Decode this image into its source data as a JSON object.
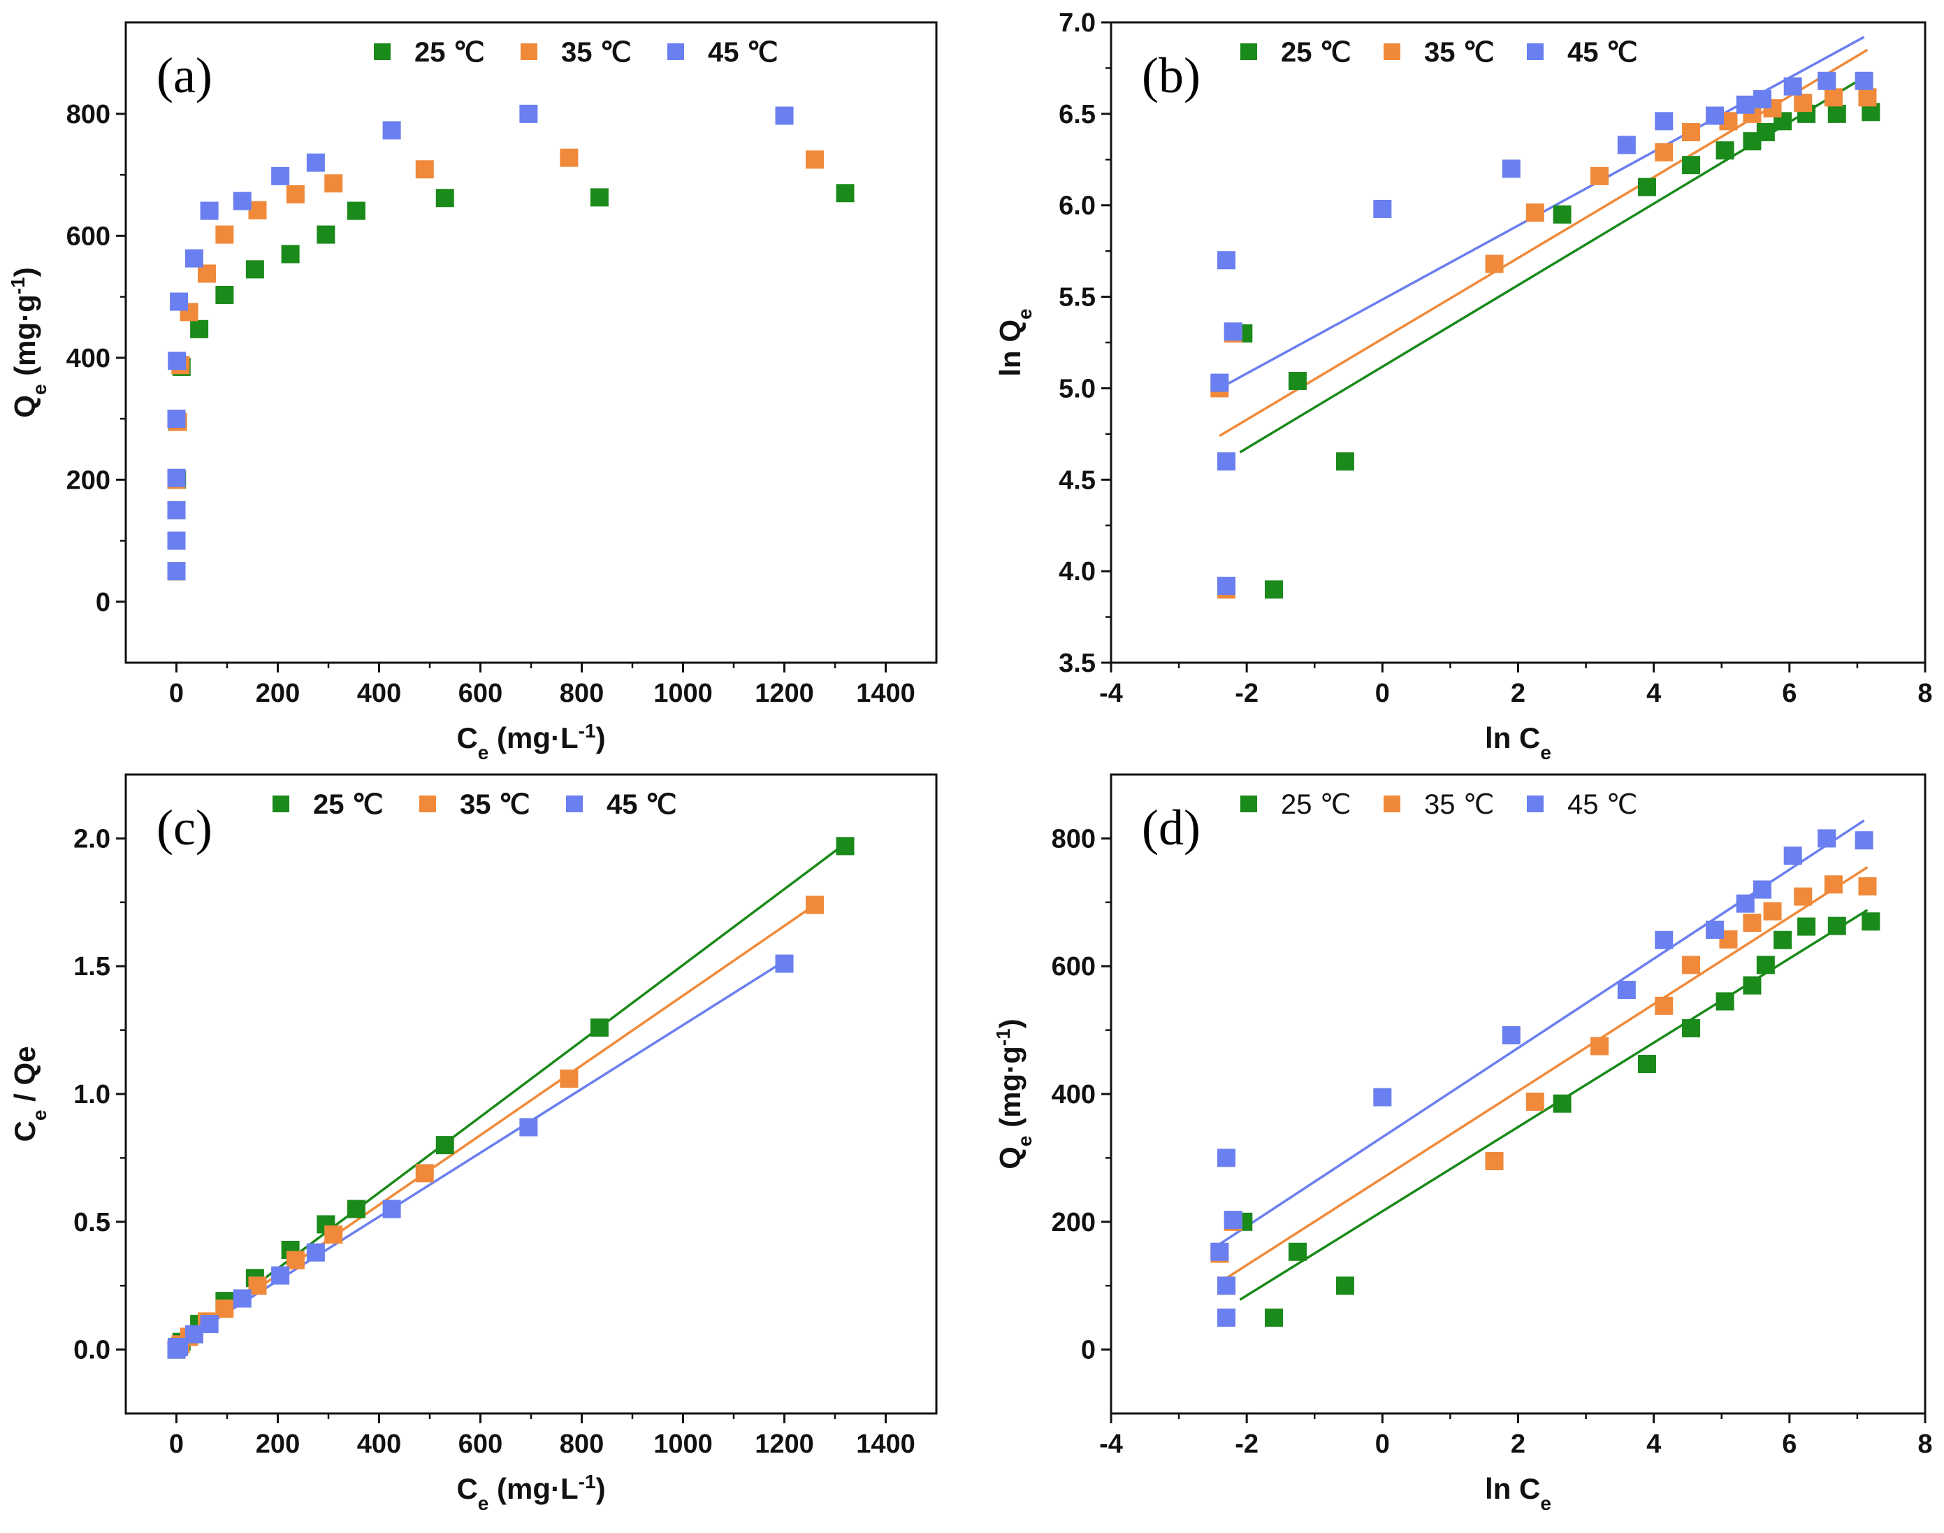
{
  "chart_data": [
    {
      "type": "scatter",
      "panel": "(a)",
      "xlabel": "Ce (mg·L-1)",
      "ylabel": "Qe (mg·g-1)",
      "xlim": [
        -100,
        1500
      ],
      "ylim": [
        -100,
        950
      ],
      "xticks": [
        0,
        200,
        400,
        600,
        800,
        1000,
        1200,
        1400
      ],
      "yticks": [
        0,
        200,
        400,
        600,
        800
      ],
      "legend": {
        "position": "top",
        "bold": true
      },
      "series": [
        {
          "name": "25 ℃",
          "color": "#1a8a1a",
          "points": [
            [
              0,
              50
            ],
            [
              0,
              100
            ],
            [
              0,
              150
            ],
            [
              1,
              200
            ],
            [
              2,
              295
            ],
            [
              10,
              385
            ],
            [
              45,
              447
            ],
            [
              95,
              503
            ],
            [
              155,
              545
            ],
            [
              225,
              570
            ],
            [
              295,
              602
            ],
            [
              355,
              641
            ],
            [
              530,
              662
            ],
            [
              835,
              663
            ],
            [
              1320,
              670
            ]
          ]
        },
        {
          "name": "35 ℃",
          "color": "#f08a3a",
          "points": [
            [
              0,
              50
            ],
            [
              0,
              100
            ],
            [
              0,
              150
            ],
            [
              0,
              200
            ],
            [
              3,
              295
            ],
            [
              8,
              388
            ],
            [
              25,
              475
            ],
            [
              60,
              538
            ],
            [
              95,
              602
            ],
            [
              160,
              642
            ],
            [
              235,
              668
            ],
            [
              310,
              686
            ],
            [
              490,
              709
            ],
            [
              775,
              728
            ],
            [
              1260,
              725
            ]
          ]
        },
        {
          "name": "45 ℃",
          "color": "#6a7ff0",
          "points": [
            [
              0,
              50
            ],
            [
              0,
              100
            ],
            [
              0,
              150
            ],
            [
              0,
              203
            ],
            [
              0,
              300
            ],
            [
              1,
              395
            ],
            [
              5,
              492
            ],
            [
              35,
              563
            ],
            [
              65,
              641
            ],
            [
              130,
              657
            ],
            [
              205,
              698
            ],
            [
              275,
              720
            ],
            [
              425,
              773
            ],
            [
              695,
              800
            ],
            [
              1200,
              797
            ]
          ]
        }
      ],
      "fits": []
    },
    {
      "type": "scatter",
      "panel": "(b)",
      "xlabel": "ln Ce",
      "ylabel": "ln Qe",
      "xlim": [
        -4,
        8
      ],
      "ylim": [
        3.5,
        7.0
      ],
      "xticks": [
        -4,
        -2,
        0,
        2,
        4,
        6,
        8
      ],
      "yticks": [
        3.5,
        4.0,
        4.5,
        5.0,
        5.5,
        6.0,
        6.5,
        7.0
      ],
      "legend": {
        "position": "top",
        "bold": true
      },
      "series": [
        {
          "name": "25 ℃",
          "color": "#1a8a1a",
          "points": [
            [
              -1.6,
              3.9
            ],
            [
              -0.55,
              4.6
            ],
            [
              -1.25,
              5.04
            ],
            [
              -2.05,
              5.3
            ],
            [
              2.65,
              5.95
            ],
            [
              3.9,
              6.1
            ],
            [
              4.55,
              6.22
            ],
            [
              5.05,
              6.3
            ],
            [
              5.45,
              6.35
            ],
            [
              5.65,
              6.4
            ],
            [
              5.9,
              6.46
            ],
            [
              6.25,
              6.5
            ],
            [
              6.7,
              6.5
            ],
            [
              7.2,
              6.51
            ]
          ]
        },
        {
          "name": "35 ℃",
          "color": "#f08a3a",
          "points": [
            [
              -2.3,
              3.9
            ],
            [
              -2.4,
              5.0
            ],
            [
              -2.2,
              5.3
            ],
            [
              1.65,
              5.68
            ],
            [
              2.25,
              5.96
            ],
            [
              3.2,
              6.16
            ],
            [
              4.15,
              6.29
            ],
            [
              4.55,
              6.4
            ],
            [
              5.1,
              6.46
            ],
            [
              5.45,
              6.5
            ],
            [
              5.75,
              6.53
            ],
            [
              6.2,
              6.56
            ],
            [
              6.65,
              6.59
            ],
            [
              7.15,
              6.59
            ]
          ]
        },
        {
          "name": "45 ℃",
          "color": "#6a7ff0",
          "points": [
            [
              -2.3,
              3.92
            ],
            [
              -2.3,
              4.6
            ],
            [
              -2.4,
              5.03
            ],
            [
              -2.2,
              5.31
            ],
            [
              -2.3,
              5.7
            ],
            [
              0.0,
              5.98
            ],
            [
              1.9,
              6.2
            ],
            [
              3.6,
              6.33
            ],
            [
              4.15,
              6.46
            ],
            [
              4.9,
              6.49
            ],
            [
              5.35,
              6.55
            ],
            [
              5.6,
              6.58
            ],
            [
              6.05,
              6.65
            ],
            [
              6.55,
              6.68
            ],
            [
              7.1,
              6.68
            ]
          ]
        }
      ],
      "fits": [
        {
          "name": "25 ℃",
          "color": "#1a8a1a",
          "x": [
            -2.1,
            7.1
          ],
          "y": [
            4.65,
            6.7
          ]
        },
        {
          "name": "35 ℃",
          "color": "#f08a3a",
          "x": [
            -2.4,
            7.15
          ],
          "y": [
            4.74,
            6.85
          ]
        },
        {
          "name": "45 ℃",
          "color": "#6a7ff0",
          "x": [
            -2.4,
            7.1
          ],
          "y": [
            5.0,
            6.92
          ]
        }
      ]
    },
    {
      "type": "scatter",
      "panel": "(c)",
      "xlabel": "Ce (mg·L-1)",
      "ylabel": "Ce / Qe",
      "xlim": [
        -100,
        1500
      ],
      "ylim": [
        -0.25,
        2.25
      ],
      "xticks": [
        0,
        200,
        400,
        600,
        800,
        1000,
        1200,
        1400
      ],
      "yticks": [
        0.0,
        0.5,
        1.0,
        1.5,
        2.0
      ],
      "legend": {
        "position": "top",
        "bold": true
      },
      "series": [
        {
          "name": "25 ℃",
          "color": "#1a8a1a",
          "points": [
            [
              0,
              0.0
            ],
            [
              2,
              0.01
            ],
            [
              10,
              0.03
            ],
            [
              45,
              0.1
            ],
            [
              95,
              0.19
            ],
            [
              155,
              0.28
            ],
            [
              225,
              0.39
            ],
            [
              295,
              0.49
            ],
            [
              355,
              0.55
            ],
            [
              530,
              0.8
            ],
            [
              835,
              1.26
            ],
            [
              1320,
              1.97
            ]
          ]
        },
        {
          "name": "35 ℃",
          "color": "#f08a3a",
          "points": [
            [
              0,
              0.0
            ],
            [
              8,
              0.02
            ],
            [
              25,
              0.05
            ],
            [
              60,
              0.11
            ],
            [
              95,
              0.16
            ],
            [
              160,
              0.25
            ],
            [
              235,
              0.35
            ],
            [
              310,
              0.45
            ],
            [
              490,
              0.69
            ],
            [
              775,
              1.06
            ],
            [
              1260,
              1.74
            ]
          ]
        },
        {
          "name": "45 ℃",
          "color": "#6a7ff0",
          "points": [
            [
              0,
              0.0
            ],
            [
              1,
              0.01
            ],
            [
              5,
              0.01
            ],
            [
              35,
              0.06
            ],
            [
              65,
              0.1
            ],
            [
              130,
              0.2
            ],
            [
              205,
              0.29
            ],
            [
              275,
              0.38
            ],
            [
              425,
              0.55
            ],
            [
              695,
              0.87
            ],
            [
              1200,
              1.51
            ]
          ]
        }
      ],
      "fits": [
        {
          "name": "25 ℃",
          "color": "#1a8a1a",
          "x": [
            0,
            1320
          ],
          "y": [
            0.02,
            1.98
          ]
        },
        {
          "name": "35 ℃",
          "color": "#f08a3a",
          "x": [
            0,
            1260
          ],
          "y": [
            0.02,
            1.74
          ]
        },
        {
          "name": "45 ℃",
          "color": "#6a7ff0",
          "x": [
            0,
            1200
          ],
          "y": [
            0.02,
            1.52
          ]
        }
      ]
    },
    {
      "type": "scatter",
      "panel": "(d)",
      "xlabel": "ln Ce",
      "ylabel": "Qe (mg·g-1)",
      "xlim": [
        -4,
        8
      ],
      "ylim": [
        -100,
        900
      ],
      "xticks": [
        -4,
        -2,
        0,
        2,
        4,
        6,
        8
      ],
      "yticks": [
        0,
        200,
        400,
        600,
        800
      ],
      "legend": {
        "position": "top",
        "bold": false
      },
      "series": [
        {
          "name": "25 ℃",
          "color": "#1a8a1a",
          "points": [
            [
              -1.6,
              50
            ],
            [
              -0.55,
              100
            ],
            [
              -1.25,
              153
            ],
            [
              -2.05,
              200
            ],
            [
              1.65,
              295
            ],
            [
              2.65,
              385
            ],
            [
              3.9,
              447
            ],
            [
              4.55,
              503
            ],
            [
              5.05,
              545
            ],
            [
              5.45,
              570
            ],
            [
              5.65,
              602
            ],
            [
              5.9,
              641
            ],
            [
              6.25,
              662
            ],
            [
              6.7,
              663
            ],
            [
              7.2,
              670
            ]
          ]
        },
        {
          "name": "35 ℃",
          "color": "#f08a3a",
          "points": [
            [
              -2.3,
              100
            ],
            [
              -2.4,
              150
            ],
            [
              -2.2,
              200
            ],
            [
              1.65,
              295
            ],
            [
              2.25,
              388
            ],
            [
              3.2,
              475
            ],
            [
              4.15,
              538
            ],
            [
              4.55,
              602
            ],
            [
              5.1,
              642
            ],
            [
              5.45,
              668
            ],
            [
              5.75,
              686
            ],
            [
              6.2,
              709
            ],
            [
              6.65,
              728
            ],
            [
              7.15,
              725
            ]
          ]
        },
        {
          "name": "45 ℃",
          "color": "#6a7ff0",
          "points": [
            [
              -2.3,
              50
            ],
            [
              -2.3,
              100
            ],
            [
              -2.4,
              153
            ],
            [
              -2.2,
              203
            ],
            [
              -2.3,
              300
            ],
            [
              0.0,
              395
            ],
            [
              1.9,
              492
            ],
            [
              3.6,
              563
            ],
            [
              4.15,
              641
            ],
            [
              4.9,
              657
            ],
            [
              5.35,
              698
            ],
            [
              5.6,
              720
            ],
            [
              6.05,
              773
            ],
            [
              6.55,
              800
            ],
            [
              7.1,
              797
            ]
          ]
        }
      ],
      "fits": [
        {
          "name": "25 ℃",
          "color": "#1a8a1a",
          "x": [
            -2.1,
            7.15
          ],
          "y": [
            78,
            688
          ]
        },
        {
          "name": "35 ℃",
          "color": "#f08a3a",
          "x": [
            -2.4,
            7.15
          ],
          "y": [
            105,
            755
          ]
        },
        {
          "name": "45 ℃",
          "color": "#6a7ff0",
          "x": [
            -2.4,
            7.1
          ],
          "y": [
            165,
            828
          ]
        }
      ]
    }
  ]
}
